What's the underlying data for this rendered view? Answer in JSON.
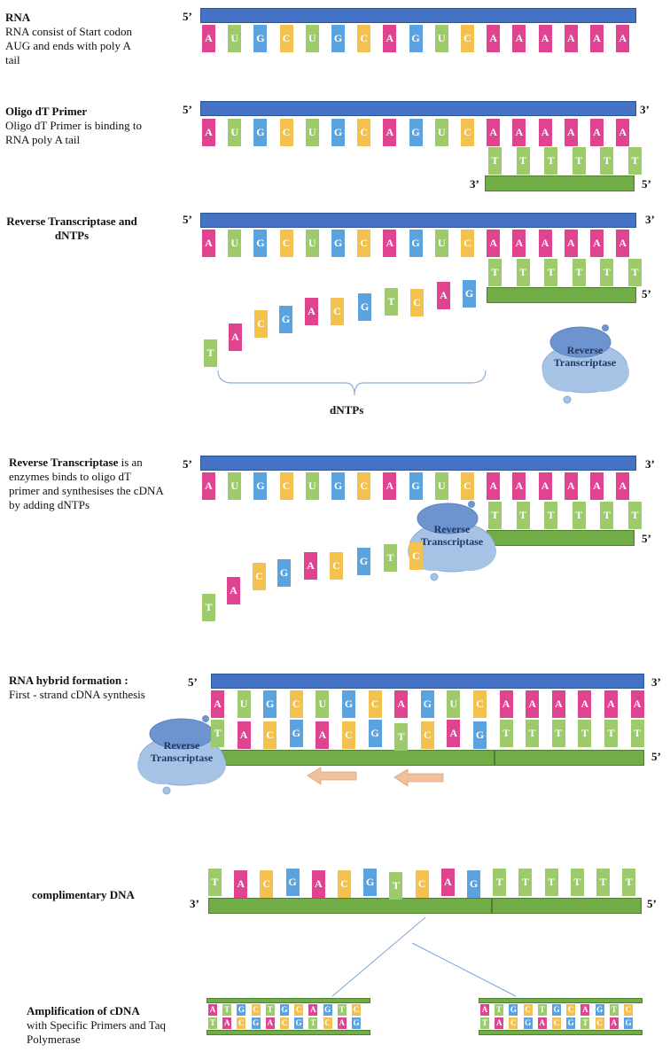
{
  "sections": {
    "rna": {
      "title": "RNA",
      "desc": "RNA consist of Start codon AUG and ends with poly A tail"
    },
    "oligo": {
      "title": "Oligo dT Primer",
      "desc": "Oligo dT Primer is binding to RNA poly A tail"
    },
    "rt": {
      "title": "Reverse Transcriptase and dNTPs"
    },
    "rt2": {
      "title": "Reverse Transcriptase",
      "desc": " is an enzymes binds to oligo dT primer and synthesises the cDNA by adding dNTPs"
    },
    "hybrid": {
      "title": "RNA hybrid formation :",
      "desc": "First - strand cDNA synthesis"
    },
    "cdna": {
      "title": "complimentary DNA"
    },
    "amp": {
      "title": "Amplification of cDNA",
      "desc": "with Specific Primers and Taq Polymerase"
    }
  },
  "labels": {
    "five_prime": "5’",
    "three_prime": "3’",
    "dntps": "dNTPs",
    "enzyme": "Reverse Transcriptase"
  },
  "sequences": {
    "rna": [
      "A",
      "U",
      "G",
      "C",
      "U",
      "G",
      "C",
      "A",
      "G",
      "U",
      "C",
      "A",
      "A",
      "A",
      "A",
      "A",
      "A"
    ],
    "poly_t": [
      "T",
      "T",
      "T",
      "T",
      "T",
      "T"
    ],
    "dntps": [
      "T",
      "A",
      "C",
      "G",
      "A",
      "C",
      "G",
      "T",
      "C",
      "A",
      "G"
    ],
    "cdna": [
      "T",
      "A",
      "C",
      "G",
      "A",
      "C",
      "G",
      "T",
      "C",
      "A",
      "G",
      "T",
      "T",
      "T",
      "T",
      "T",
      "T"
    ],
    "amp_top": [
      "A",
      "T",
      "G",
      "C",
      "T",
      "G",
      "C",
      "A",
      "G",
      "T",
      "C"
    ],
    "amp_bottom": [
      "T",
      "A",
      "C",
      "G",
      "A",
      "C",
      "G",
      "T",
      "C",
      "A",
      "G"
    ]
  },
  "colors": {
    "A": "#e0438f",
    "U": "#9dcb6b",
    "G": "#5aa3de",
    "C": "#f2c14e",
    "T": "#9dcb6b",
    "rna_strand": "#4472c4",
    "dna_strand": "#70ad47",
    "cloud": "#a6c3e6",
    "cloud_dark": "#6d94cf",
    "arrow": "#f0c19c"
  }
}
